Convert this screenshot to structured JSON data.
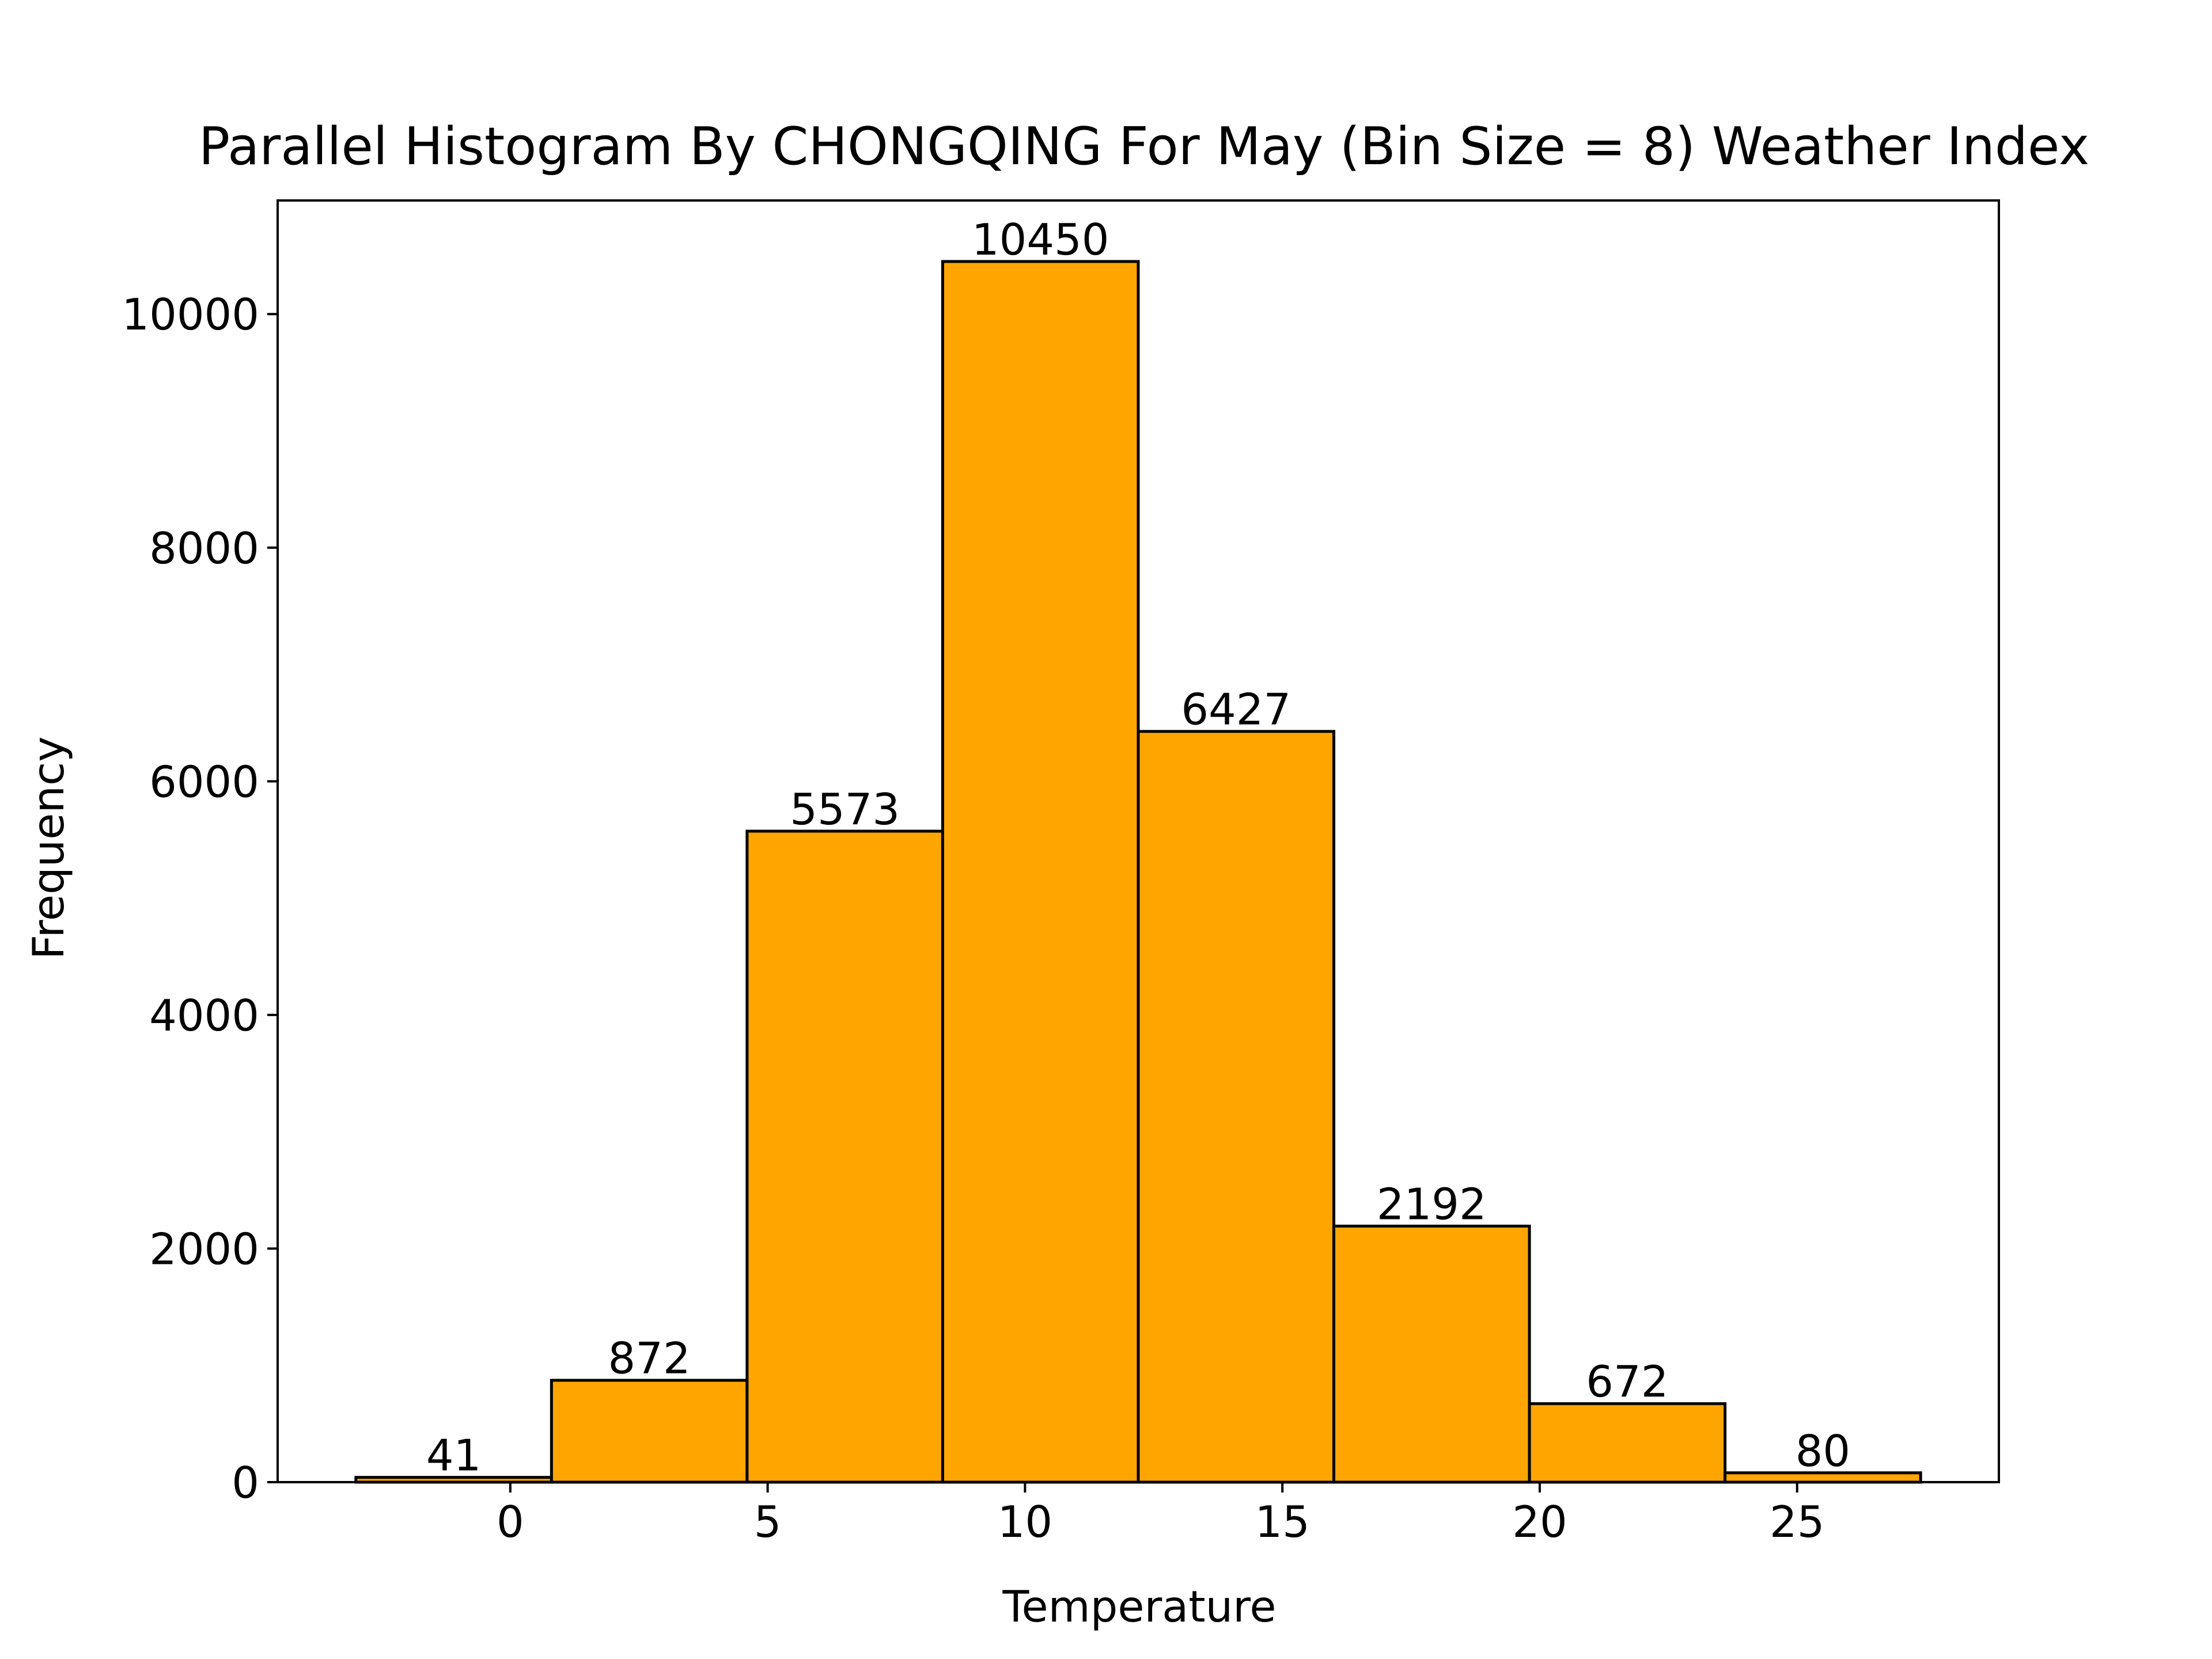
{
  "chart_data": {
    "type": "bar",
    "title": "Parallel Histogram By CHONGQING For May (Bin Size = 8) Weather Index",
    "xlabel": "Temperature",
    "ylabel": "Frequency",
    "bins": [
      {
        "x0": -3.0,
        "x1": 0.8,
        "value": 41,
        "label": "41"
      },
      {
        "x0": 0.8,
        "x1": 4.6,
        "value": 872,
        "label": "872"
      },
      {
        "x0": 4.6,
        "x1": 8.4,
        "value": 5573,
        "label": "5573"
      },
      {
        "x0": 8.4,
        "x1": 12.2,
        "value": 10450,
        "label": "10450"
      },
      {
        "x0": 12.2,
        "x1": 16.0,
        "value": 6427,
        "label": "6427"
      },
      {
        "x0": 16.0,
        "x1": 19.8,
        "value": 2192,
        "label": "2192"
      },
      {
        "x0": 19.8,
        "x1": 23.6,
        "value": 672,
        "label": "672"
      },
      {
        "x0": 23.6,
        "x1": 27.4,
        "value": 80,
        "label": "80"
      }
    ],
    "xlim": [
      -4.52,
      28.92
    ],
    "ylim": [
      0,
      10972.5
    ],
    "xticks": [
      {
        "value": 0,
        "label": "0"
      },
      {
        "value": 5,
        "label": "5"
      },
      {
        "value": 10,
        "label": "10"
      },
      {
        "value": 15,
        "label": "15"
      },
      {
        "value": 20,
        "label": "20"
      },
      {
        "value": 25,
        "label": "25"
      }
    ],
    "yticks": [
      {
        "value": 0,
        "label": "0"
      },
      {
        "value": 2000,
        "label": "2000"
      },
      {
        "value": 4000,
        "label": "4000"
      },
      {
        "value": 6000,
        "label": "6000"
      },
      {
        "value": 8000,
        "label": "8000"
      },
      {
        "value": 10000,
        "label": "10000"
      }
    ],
    "bar_color": "#FFA500",
    "edge_color": "#000000",
    "grid": false,
    "legend": "none"
  }
}
